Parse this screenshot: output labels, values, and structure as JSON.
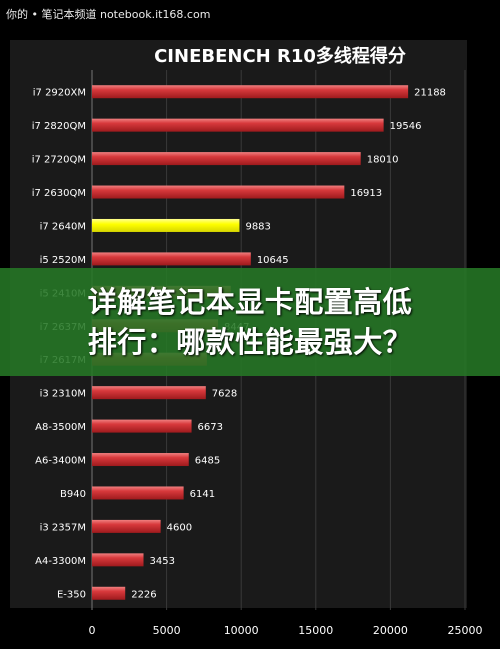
{
  "watermark": "你的 • 笔记本频道 notebook.it168.com",
  "overlay": {
    "line1": "详解笔记本显卡配置高低",
    "line2": "排行：哪款性能最强大？"
  },
  "colors": {
    "background": "#000000",
    "plot_bg": "#1a1a1a",
    "bar_red": "#c8262a",
    "bar_highlight": "#ffff00",
    "text": "#ffffff"
  },
  "chart_data": {
    "type": "bar",
    "orientation": "horizontal",
    "title": "CINEBENCH R10多线程得分",
    "categories": [
      "i7 2920XM",
      "i7 2820QM",
      "i7 2720QM",
      "i7 2630QM",
      "i7 2640M",
      "i5 2520M",
      "i5 2410M",
      "i7 2637M",
      "i7 2617M",
      "i3 2310M",
      "A8-3500M",
      "A6-3400M",
      "B940",
      "i3 2357M",
      "A4-3300M",
      "E-350"
    ],
    "values": [
      21188,
      19546,
      18010,
      16913,
      9883,
      10645,
      9300,
      8447,
      7700,
      7628,
      6673,
      6485,
      6141,
      4600,
      3453,
      2226
    ],
    "labels": [
      "21188",
      "19546",
      "18010",
      "16913",
      "9883",
      "10645",
      "",
      "8447",
      "",
      "7628",
      "6673",
      "6485",
      "6141",
      "4600",
      "3453",
      "2226"
    ],
    "highlight": "i7 2640M",
    "xlim": [
      0,
      25000
    ],
    "xticks": [
      "0",
      "5000",
      "10000",
      "15000",
      "20000",
      "25000"
    ],
    "grid": true,
    "legend": "none"
  }
}
